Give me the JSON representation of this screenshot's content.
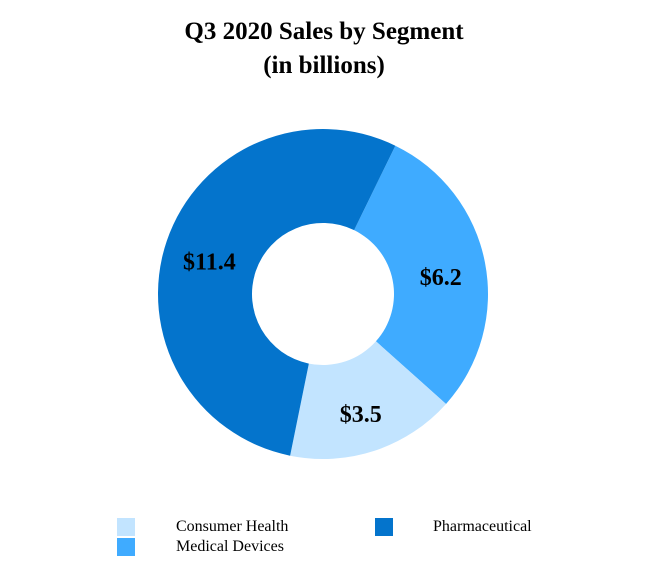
{
  "chart_data": {
    "type": "pie",
    "variant": "donut",
    "title": "Q3 2020 Sales by Segment",
    "subtitle": "(in billions)",
    "series": [
      {
        "name": "Medical Devices",
        "value": 6.2,
        "label": "$6.2",
        "color": "#3fabff"
      },
      {
        "name": "Consumer Health",
        "value": 3.5,
        "label": "$3.5",
        "color": "#c2e4ff"
      },
      {
        "name": "Pharmaceutical",
        "value": 11.4,
        "label": "$11.4",
        "color": "#0474cc"
      }
    ],
    "legend_placement": "bottom"
  }
}
